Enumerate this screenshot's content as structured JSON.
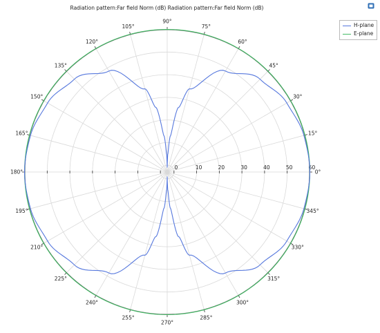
{
  "title": "Radiation pattern:Far field Norm (dB) Radiation pattern:Far field Norm (dB)",
  "legend": [
    "H-plane",
    "E-plane"
  ],
  "colors": {
    "h_plane": "#5577dd",
    "e_plane": "#44bb66",
    "grid": "#d9d9d9",
    "frame": "#555555"
  },
  "chart_data": {
    "type": "line",
    "coordinate_system": "polar",
    "title": "Radiation pattern:Far field Norm (dB) Radiation pattern:Far field Norm (dB)",
    "xlabel": "",
    "ylabel": "",
    "angle_unit": "deg",
    "angle_ticks": [
      "0°",
      "15°",
      "30°",
      "45°",
      "60°",
      "75°",
      "90°",
      "105°",
      "120°",
      "135°",
      "150°",
      "165°",
      "180°",
      "195°",
      "210°",
      "225°",
      "240°",
      "255°",
      "270°",
      "285°",
      "300°",
      "315°",
      "330°",
      "345°"
    ],
    "radial_ticks": [
      "0",
      "10",
      "20",
      "30",
      "40",
      "50",
      "60"
    ],
    "rlim": [
      -3,
      62
    ],
    "grid": true,
    "legend_position": "top-right",
    "series": [
      {
        "name": "H-plane",
        "angle_deg": [
          0,
          15,
          30,
          45,
          60,
          75,
          80,
          85,
          88,
          90,
          92,
          95,
          100,
          105,
          120,
          135,
          150,
          165,
          180,
          195,
          210,
          225,
          240,
          255,
          260,
          265,
          268,
          270,
          272,
          275,
          280,
          285,
          300,
          315,
          330,
          345,
          360
        ],
        "r_db": [
          60,
          59.5,
          58,
          55,
          48.5,
          35,
          26,
          13,
          5,
          -1,
          5,
          13,
          26,
          35,
          48.5,
          55,
          58,
          59.5,
          60,
          59.5,
          58,
          55,
          48.5,
          35,
          26,
          13,
          5,
          -1,
          5,
          13,
          26,
          35,
          48.5,
          55,
          58,
          59.5,
          60
        ]
      },
      {
        "name": "E-plane",
        "angle_deg": [
          0,
          30,
          60,
          90,
          120,
          150,
          180,
          210,
          240,
          270,
          300,
          330,
          360
        ],
        "r_db": [
          60,
          60,
          60,
          60,
          60,
          60,
          60,
          60,
          60,
          60,
          60,
          60,
          60
        ]
      }
    ]
  }
}
